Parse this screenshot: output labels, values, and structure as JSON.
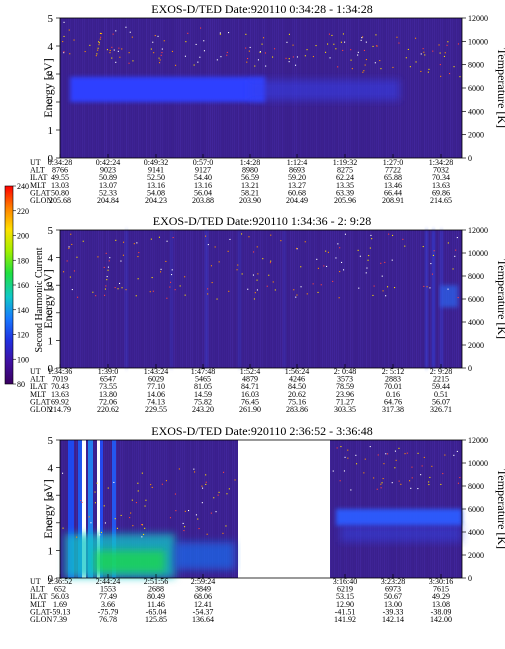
{
  "colors": {
    "background": "#3a1f8c",
    "band": "#2f3fff",
    "colorbar_stops": [
      "#3a0060",
      "#4010a0",
      "#2030e0",
      "#1878ff",
      "#10c8c8",
      "#20e040",
      "#a0f000",
      "#ffe000",
      "#ff8000",
      "#ff0000"
    ]
  },
  "colorbar": {
    "label": "Second Harmonic Current",
    "ticks": [
      "80",
      "100",
      "120",
      "140",
      "160",
      "180",
      "200",
      "220",
      "240"
    ],
    "min": 80,
    "max": 240
  },
  "row_labels": [
    "UT",
    "ALT",
    "ILAT",
    "MLT",
    "GLAT",
    "GLON"
  ],
  "panels": [
    {
      "title": "EXOS-D/TED   Date:920110  0:34:28 - 1:34:28",
      "ylabel": "Energy [eV]",
      "y2label": "Temperature [K]",
      "yticks": [
        "0",
        "1",
        "2",
        "3",
        "4",
        "5"
      ],
      "y2ticks": [
        "0",
        "2000",
        "4000",
        "6000",
        "8000",
        "10000",
        "12000"
      ],
      "columns": [
        [
          "0:34:28",
          "8766",
          "49.55",
          "13.03",
          "50.80",
          "205.68"
        ],
        [
          "0:42:24",
          "9023",
          "50.89",
          "13.07",
          "52.33",
          "204.84"
        ],
        [
          "0:49:32",
          "9141",
          "52.50",
          "13.16",
          "54.08",
          "204.23"
        ],
        [
          "0:57:0",
          "9127",
          "54.40",
          "13.16",
          "56.04",
          "203.88"
        ],
        [
          "1:4:28",
          "8980",
          "56.59",
          "13.21",
          "58.21",
          "203.90"
        ],
        [
          "1:12:4",
          "8693",
          "59.20",
          "13.27",
          "60.68",
          "204.49"
        ],
        [
          "1:19:32",
          "8275",
          "62.24",
          "13.35",
          "63.39",
          "205.96"
        ],
        [
          "1:27:0",
          "7722",
          "65.88",
          "13.46",
          "66.44",
          "208.91"
        ],
        [
          "1:34:28",
          "7032",
          "70.34",
          "13.63",
          "69.86",
          "214.65"
        ]
      ]
    },
    {
      "title": "EXOS-D/TED   Date:920110  1:34:36 - 2: 9:28",
      "ylabel": "Energy [eV]",
      "y2label": "Temperature [K]",
      "yticks": [
        "0",
        "1",
        "2",
        "3",
        "4",
        "5"
      ],
      "y2ticks": [
        "0",
        "2000",
        "4000",
        "6000",
        "8000",
        "10000",
        "12000"
      ],
      "columns": [
        [
          "1:34:36",
          "7019",
          "70.43",
          "13.63",
          "69.92",
          "214.79"
        ],
        [
          "1:39:0",
          "6547",
          "73.55",
          "13.80",
          "72.06",
          "220.62"
        ],
        [
          "1:43:24",
          "6029",
          "77.10",
          "14.06",
          "74.13",
          "229.55"
        ],
        [
          "1:47:48",
          "5465",
          "81.05",
          "14.59",
          "75.82",
          "243.20"
        ],
        [
          "1:52:4",
          "4879",
          "84.71",
          "16.03",
          "76.45",
          "261.90"
        ],
        [
          "1:56:24",
          "4246",
          "84.50",
          "20.62",
          "75.16",
          "283.86"
        ],
        [
          "2: 0:48",
          "3573",
          "78.59",
          "23.96",
          "71.27",
          "303.35"
        ],
        [
          "2: 5:12",
          "2883",
          "70.01",
          "0.16",
          "64.76",
          "317.38"
        ],
        [
          "2: 9:28",
          "2215",
          "59.44",
          "0.51",
          "56.07",
          "326.71"
        ]
      ]
    },
    {
      "title": "EXOS-D/TED   Date:920110  2:36:52 - 3:36:48",
      "ylabel": "Energy [eV]",
      "y2label": "Temperature [K]",
      "yticks": [
        "0",
        "1",
        "2",
        "3",
        "4",
        "5"
      ],
      "y2ticks": [
        "0",
        "2000",
        "4000",
        "6000",
        "8000",
        "10000",
        "12000"
      ],
      "columns": [
        [
          "2:36:52",
          "652",
          "56.03",
          "1.69",
          "-59.13",
          "7.39"
        ],
        [
          "2:44:24",
          "1553",
          "77.49",
          "3.66",
          "-75.79",
          "76.78"
        ],
        [
          "2:51:56",
          "2688",
          "80.49",
          "11.46",
          "-65.04",
          "125.85"
        ],
        [
          "2:59:24",
          "3849",
          "68.06",
          "12.41",
          "-54.37",
          "136.64"
        ],
        null,
        null,
        [
          "3:16:40",
          "6219",
          "53.15",
          "12.90",
          "-41.51",
          "141.92"
        ],
        [
          "3:23:28",
          "6973",
          "50.67",
          "13.00",
          "-39.33",
          "142.14"
        ],
        [
          "3:30:16",
          "7615",
          "49.29",
          "13.08",
          "-38.09",
          "142.00"
        ]
      ]
    }
  ],
  "chart_data": [
    {
      "type": "heatmap",
      "title": "EXOS-D/TED   Date:920110  0:34:28 - 1:34:28",
      "ylabel": "Energy [eV]",
      "y2label": "Temperature [K]",
      "ylim": [
        0,
        5
      ],
      "y2lim": [
        0,
        12000
      ],
      "x": [
        "0:34:28",
        "0:42:24",
        "0:49:32",
        "0:57:0",
        "1:4:28",
        "1:12:4",
        "1:19:32",
        "1:27:0",
        "1:34:28"
      ]
    },
    {
      "type": "heatmap",
      "title": "EXOS-D/TED   Date:920110  1:34:36 - 2: 9:28",
      "ylabel": "Energy [eV]",
      "y2label": "Temperature [K]",
      "ylim": [
        0,
        5
      ],
      "y2lim": [
        0,
        12000
      ],
      "x": [
        "1:34:36",
        "1:39:0",
        "1:43:24",
        "1:47:48",
        "1:52:4",
        "1:56:24",
        "2: 0:48",
        "2: 5:12",
        "2: 9:28"
      ]
    },
    {
      "type": "heatmap",
      "title": "EXOS-D/TED   Date:920110  2:36:52 - 3:36:48",
      "ylabel": "Energy [eV]",
      "y2label": "Temperature [K]",
      "ylim": [
        0,
        5
      ],
      "y2lim": [
        0,
        12000
      ],
      "x": [
        "2:36:52",
        "2:44:24",
        "2:51:56",
        "2:59:24",
        "3:16:40",
        "3:23:28",
        "3:30:16"
      ]
    }
  ]
}
